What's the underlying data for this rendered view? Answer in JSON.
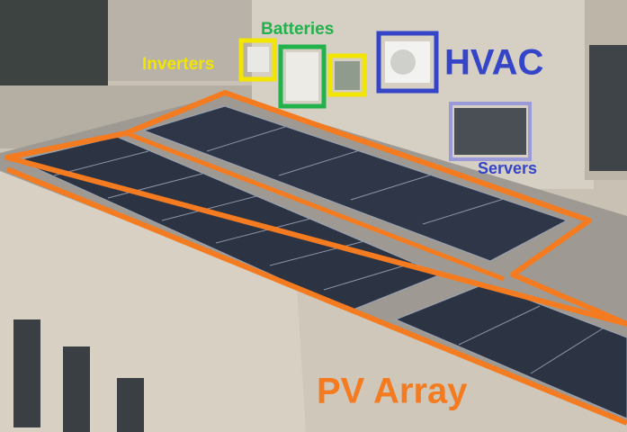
{
  "labels": {
    "inverters": "Inverters",
    "batteries": "Batteries",
    "hvac": "HVAC",
    "servers": "Servers",
    "pv_array": "PV Array"
  }
}
